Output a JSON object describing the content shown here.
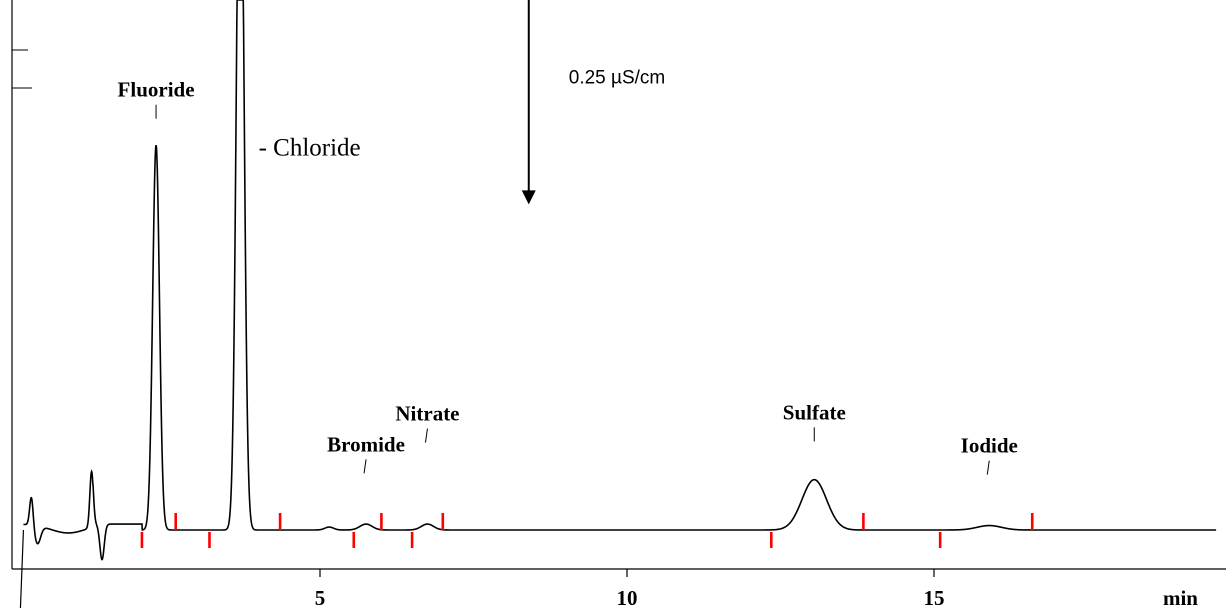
{
  "chart_data": {
    "type": "line",
    "title": "",
    "xlabel": "min",
    "ylabel": "",
    "xlim": [
      0,
      19.6
    ],
    "ylim": [
      -0.15,
      2.2
    ],
    "x_ticks": [
      {
        "value": 5,
        "label": "5"
      },
      {
        "value": 10,
        "label": "10"
      },
      {
        "value": 15,
        "label": "15"
      }
    ],
    "grid": false,
    "legend": "none",
    "baseline": 0,
    "scale_bar": {
      "label": "0.25  µS/cm",
      "x": 8.4,
      "y_from": 1.1,
      "y_to": 1.85
    },
    "peaks": [
      {
        "name": "Fluoride",
        "rt": 2.33,
        "height": 1.3,
        "width": 0.055
      },
      {
        "name": "Chloride",
        "rt": 3.7,
        "height": 2.6,
        "width": 0.06
      },
      {
        "name": "Bromide",
        "rt": 5.75,
        "height": 0.02,
        "width": 0.1
      },
      {
        "name": "Nitrate",
        "rt": 6.75,
        "height": 0.02,
        "width": 0.1
      },
      {
        "name": "Sulfate",
        "rt": 13.05,
        "height": 0.17,
        "width": 0.2
      },
      {
        "name": "Iodide",
        "rt": 15.9,
        "height": 0.015,
        "width": 0.2
      }
    ],
    "peak_labels": [
      {
        "text": "Fluoride",
        "rt": 2.33,
        "y": 1.43
      },
      {
        "text": "- Chloride",
        "rt": 4.0,
        "y": 1.34
      },
      {
        "text": "Bromide",
        "rt": 5.75,
        "y": 0.232
      },
      {
        "text": "Nitrate",
        "rt": 6.75,
        "y": 0.336
      },
      {
        "text": "Sulfate",
        "rt": 13.05,
        "y": 0.34
      },
      {
        "text": "Iodide",
        "rt": 15.9,
        "y": 0.228
      }
    ],
    "integration_marks": [
      {
        "rt": 2.1,
        "side": "below"
      },
      {
        "rt": 2.65,
        "side": "above"
      },
      {
        "rt": 3.2,
        "side": "below"
      },
      {
        "rt": 4.35,
        "side": "above"
      },
      {
        "rt": 5.55,
        "side": "below"
      },
      {
        "rt": 6.0,
        "side": "above"
      },
      {
        "rt": 6.5,
        "side": "below"
      },
      {
        "rt": 7.0,
        "side": "above"
      },
      {
        "rt": 12.35,
        "side": "below"
      },
      {
        "rt": 13.85,
        "side": "above"
      },
      {
        "rt": 15.1,
        "side": "below"
      },
      {
        "rt": 16.6,
        "side": "above"
      }
    ],
    "colors": {
      "trace": "#000000",
      "integration_marks": "#ff0000"
    }
  }
}
